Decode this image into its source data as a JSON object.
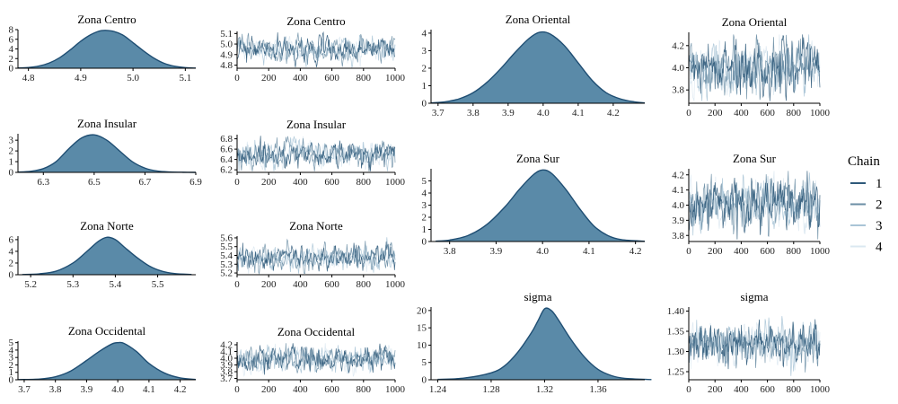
{
  "chart_data": [
    {
      "panel": "density",
      "type": "area",
      "title": "Zona Centro",
      "x": [
        4.78,
        4.8,
        4.82,
        4.84,
        4.86,
        4.88,
        4.9,
        4.92,
        4.94,
        4.96,
        4.98,
        5.0,
        5.02,
        5.04,
        5.06,
        5.08,
        5.1,
        5.12
      ],
      "y": [
        0.05,
        0.15,
        0.45,
        1.1,
        2.2,
        3.8,
        5.6,
        7.0,
        7.8,
        7.7,
        6.9,
        5.3,
        3.6,
        2.1,
        1.0,
        0.4,
        0.12,
        0.03
      ],
      "xticks": [
        4.8,
        4.9,
        5.0,
        5.1
      ],
      "yticks": [
        0,
        2,
        4,
        6,
        8
      ],
      "xlim": [
        4.78,
        5.12
      ],
      "ylim": [
        0,
        8
      ]
    },
    {
      "panel": "trace",
      "type": "line",
      "title": "Zona Centro",
      "xticks": [
        0,
        200,
        400,
        600,
        800,
        1000
      ],
      "yticks": [
        4.8,
        4.9,
        5.0,
        5.1
      ],
      "xlim": [
        0,
        1000
      ],
      "ylim": [
        4.77,
        5.12
      ],
      "mean": 4.95,
      "spread": 0.05
    },
    {
      "panel": "density",
      "type": "area",
      "title": "Zona Insular",
      "x": [
        6.2,
        6.25,
        6.3,
        6.35,
        6.4,
        6.45,
        6.5,
        6.55,
        6.6,
        6.65,
        6.7,
        6.75,
        6.8,
        6.85,
        6.9
      ],
      "y": [
        0.03,
        0.1,
        0.35,
        1.0,
        2.2,
        3.2,
        3.5,
        3.0,
        2.0,
        1.0,
        0.4,
        0.12,
        0.04,
        0.01,
        0.0
      ],
      "xticks": [
        6.3,
        6.5,
        6.7,
        6.9
      ],
      "yticks": [
        0,
        1,
        2,
        3
      ],
      "xlim": [
        6.2,
        6.9
      ],
      "ylim": [
        0,
        3.6
      ]
    },
    {
      "panel": "trace",
      "type": "line",
      "title": "Zona Insular",
      "xticks": [
        0,
        200,
        400,
        600,
        800,
        1000
      ],
      "yticks": [
        6.2,
        6.4,
        6.6,
        6.8
      ],
      "xlim": [
        0,
        1000
      ],
      "ylim": [
        6.15,
        6.88
      ],
      "mean": 6.5,
      "spread": 0.11
    },
    {
      "panel": "density",
      "type": "area",
      "title": "Zona Norte",
      "x": [
        5.18,
        5.22,
        5.26,
        5.3,
        5.33,
        5.36,
        5.38,
        5.4,
        5.42,
        5.45,
        5.48,
        5.51,
        5.54,
        5.58
      ],
      "y": [
        0.03,
        0.15,
        0.6,
        2.0,
        3.8,
        5.7,
        6.4,
        6.0,
        4.8,
        3.0,
        1.5,
        0.6,
        0.2,
        0.04
      ],
      "xticks": [
        5.2,
        5.3,
        5.4,
        5.5
      ],
      "yticks": [
        0,
        2,
        4,
        6
      ],
      "xlim": [
        5.17,
        5.59
      ],
      "ylim": [
        0,
        6.6
      ]
    },
    {
      "panel": "trace",
      "type": "line",
      "title": "Zona Norte",
      "xticks": [
        0,
        200,
        400,
        600,
        800,
        1000
      ],
      "yticks": [
        5.2,
        5.3,
        5.4,
        5.5,
        5.6
      ],
      "xlim": [
        0,
        1000
      ],
      "ylim": [
        5.18,
        5.62
      ],
      "mean": 5.38,
      "spread": 0.06
    },
    {
      "panel": "density",
      "type": "area",
      "title": "Zona Occidental",
      "x": [
        3.68,
        3.75,
        3.8,
        3.85,
        3.9,
        3.94,
        3.98,
        4.0,
        4.02,
        4.06,
        4.1,
        4.15,
        4.2,
        4.25
      ],
      "y": [
        0.02,
        0.1,
        0.4,
        1.2,
        2.6,
        3.8,
        4.8,
        5.0,
        4.9,
        3.8,
        2.2,
        0.9,
        0.25,
        0.04
      ],
      "xticks": [
        3.7,
        3.8,
        3.9,
        4.0,
        4.1,
        4.2
      ],
      "yticks": [
        0,
        1,
        2,
        3,
        4,
        5
      ],
      "xlim": [
        3.68,
        4.25
      ],
      "ylim": [
        0,
        5.2
      ]
    },
    {
      "panel": "trace",
      "type": "line",
      "title": "Zona Occidental",
      "xticks": [
        0,
        200,
        400,
        600,
        800,
        1000
      ],
      "yticks": [
        3.7,
        3.8,
        3.9,
        4.0,
        4.1,
        4.2
      ],
      "xlim": [
        0,
        1000
      ],
      "ylim": [
        3.68,
        4.24
      ],
      "mean": 3.99,
      "spread": 0.08
    },
    {
      "panel": "density",
      "type": "area",
      "title": "Zona Oriental",
      "x": [
        3.68,
        3.72,
        3.76,
        3.8,
        3.84,
        3.88,
        3.92,
        3.96,
        3.99,
        4.02,
        4.06,
        4.1,
        4.14,
        4.18,
        4.22,
        4.26,
        4.29
      ],
      "y": [
        0.02,
        0.08,
        0.25,
        0.6,
        1.2,
        2.0,
        2.9,
        3.7,
        4.05,
        3.95,
        3.3,
        2.3,
        1.3,
        0.6,
        0.25,
        0.08,
        0.02
      ],
      "xticks": [
        3.7,
        3.8,
        3.9,
        4.0,
        4.1,
        4.2
      ],
      "yticks": [
        0,
        1,
        2,
        3,
        4
      ],
      "xlim": [
        3.68,
        4.29
      ],
      "ylim": [
        0,
        4.2
      ]
    },
    {
      "panel": "trace",
      "type": "line",
      "title": "Zona Oriental",
      "xticks": [
        0,
        200,
        400,
        600,
        800,
        1000
      ],
      "yticks": [
        3.8,
        4.0,
        4.2
      ],
      "xlim": [
        0,
        1000
      ],
      "ylim": [
        3.68,
        4.32
      ],
      "mean": 4.0,
      "spread": 0.1
    },
    {
      "panel": "density",
      "type": "area",
      "title": "Zona Sur",
      "x": [
        3.77,
        3.8,
        3.84,
        3.88,
        3.92,
        3.95,
        3.98,
        4.0,
        4.02,
        4.05,
        4.08,
        4.11,
        4.14,
        4.17,
        4.22
      ],
      "y": [
        0.03,
        0.12,
        0.5,
        1.4,
        2.9,
        4.3,
        5.5,
        5.9,
        5.6,
        4.3,
        2.7,
        1.3,
        0.5,
        0.15,
        0.02
      ],
      "xticks": [
        3.8,
        3.9,
        4.0,
        4.1,
        4.2
      ],
      "yticks": [
        0,
        1,
        2,
        3,
        4,
        5
      ],
      "xlim": [
        3.76,
        4.22
      ],
      "ylim": [
        0,
        6.0
      ]
    },
    {
      "panel": "trace",
      "type": "line",
      "title": "Zona Sur",
      "xticks": [
        0,
        200,
        400,
        600,
        800,
        1000
      ],
      "yticks": [
        3.8,
        3.9,
        4.0,
        4.1,
        4.2
      ],
      "xlim": [
        0,
        1000
      ],
      "ylim": [
        3.76,
        4.24
      ],
      "mean": 4.0,
      "spread": 0.07
    },
    {
      "panel": "density",
      "type": "area",
      "title": "sigma",
      "x": [
        1.24,
        1.26,
        1.28,
        1.29,
        1.3,
        1.31,
        1.315,
        1.32,
        1.325,
        1.33,
        1.34,
        1.35,
        1.36,
        1.37,
        1.38,
        1.4
      ],
      "y": [
        0.1,
        0.5,
        2.0,
        4.0,
        8.0,
        13.5,
        17.0,
        20.5,
        20.0,
        17.5,
        11.5,
        6.5,
        3.0,
        1.2,
        0.4,
        0.05
      ],
      "xticks": [
        1.24,
        1.28,
        1.32,
        1.36
      ],
      "yticks": [
        0,
        5,
        10,
        15,
        20
      ],
      "xlim": [
        1.235,
        1.395
      ],
      "ylim": [
        0,
        21
      ]
    },
    {
      "panel": "trace",
      "type": "line",
      "title": "sigma",
      "xticks": [
        0,
        200,
        400,
        600,
        800,
        1000
      ],
      "yticks": [
        1.25,
        1.3,
        1.35,
        1.4
      ],
      "xlim": [
        0,
        1000
      ],
      "ylim": [
        1.23,
        1.41
      ],
      "mean": 1.32,
      "spread": 0.02
    }
  ],
  "legend": {
    "title": "Chain",
    "items": [
      {
        "label": "1",
        "color": "#2f5a7a"
      },
      {
        "label": "2",
        "color": "#6b8ea5"
      },
      {
        "label": "3",
        "color": "#a9c4d6"
      },
      {
        "label": "4",
        "color": "#dbe8f1"
      }
    ]
  },
  "colors": {
    "density_fill": "#5a8aa8",
    "density_line": "#1f4e73"
  }
}
